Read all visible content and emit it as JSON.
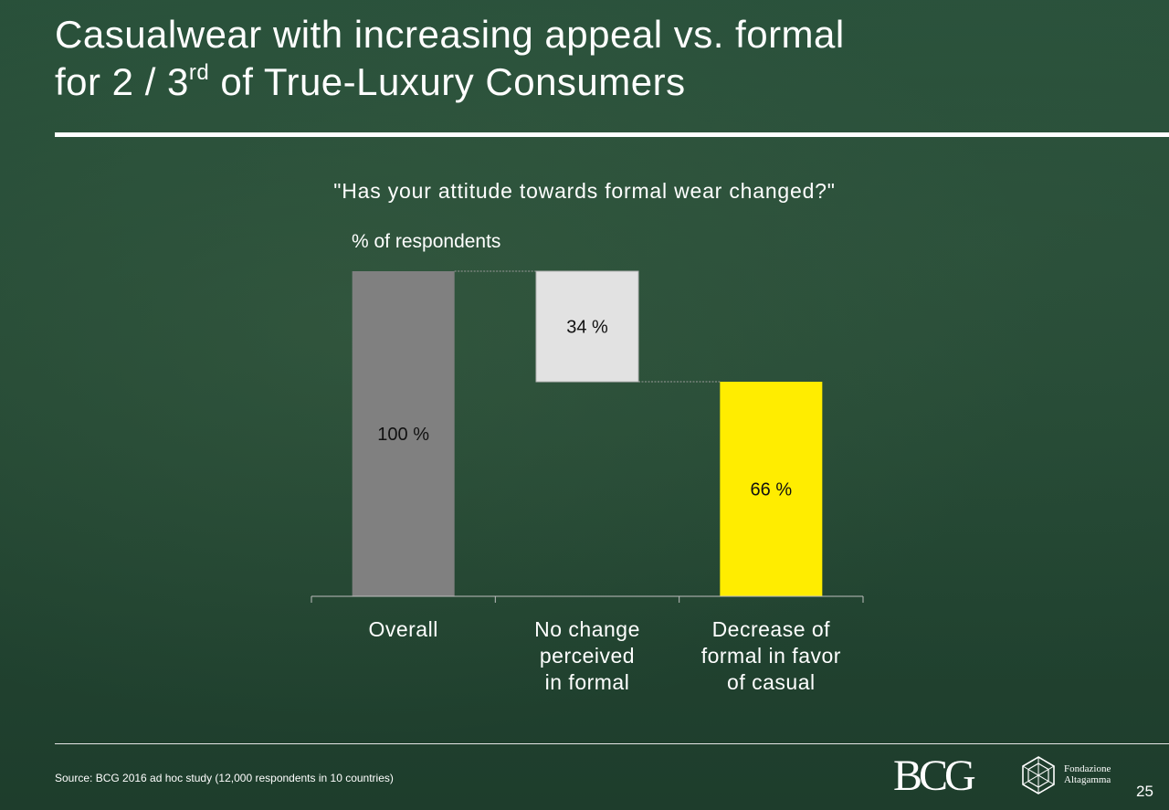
{
  "slide": {
    "title_line1": "Casualwear with increasing appeal vs. formal",
    "title_line2_pre": "for 2 / 3",
    "title_sup": "rd",
    "title_line2_post": " of True-Luxury Consumers",
    "question": "\"Has your attitude towards formal wear changed?\"",
    "unit": "% of respondents",
    "source": "Source: BCG 2016 ad hoc study (12,000 respondents in 10 countries)",
    "logo_bcg": "BCG",
    "logo_fa_line1": "Fondazione",
    "logo_fa_line2": "Altagamma",
    "page_number": "25"
  },
  "chart_data": {
    "type": "waterfall",
    "title": "\"Has your attitude towards formal wear changed?\"",
    "ylabel": "% of respondents",
    "categories": [
      [
        "Overall"
      ],
      [
        "No change",
        "perceived",
        "in formal"
      ],
      [
        "Decrease of",
        "formal in favor",
        "of casual"
      ]
    ],
    "values": [
      100,
      34,
      66
    ],
    "bar_kinds": [
      "total",
      "decrease",
      "result"
    ],
    "data_labels": [
      "100 %",
      "34 %",
      "66 %"
    ],
    "ylim": [
      0,
      100
    ],
    "grid": false,
    "colors": {
      "total": "#808080",
      "decrease": "#e2e2e2",
      "result": "#ffed00",
      "connector": "#9a9a9a",
      "axis": "#bfbfbf"
    }
  }
}
